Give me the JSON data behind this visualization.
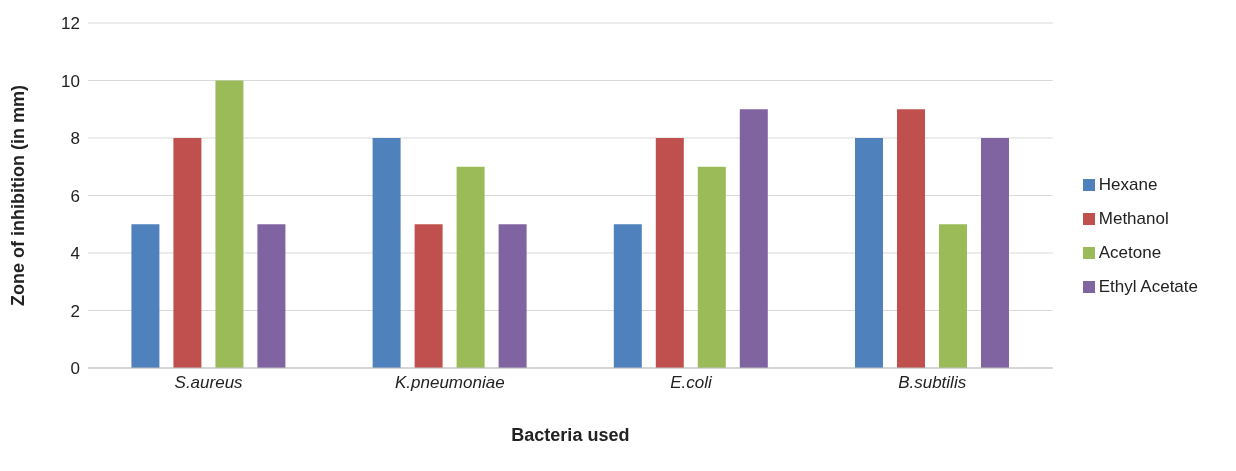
{
  "chart_data": {
    "type": "bar",
    "xlabel": "Bacteria used",
    "ylabel": "Zone of inhibition (in mm)",
    "categories": [
      "S.aureus",
      "K.pneumoniae",
      "E.coli",
      "B.subtilis"
    ],
    "series": [
      {
        "name": "Hexane",
        "color": "#4f81bd",
        "values": [
          5,
          8,
          5,
          8
        ]
      },
      {
        "name": "Methanol",
        "color": "#c0504d",
        "values": [
          8,
          5,
          8,
          9
        ]
      },
      {
        "name": "Acetone",
        "color": "#9bbb59",
        "values": [
          10,
          7,
          7,
          5
        ]
      },
      {
        "name": "Ethyl Acetate",
        "color": "#8064a2",
        "values": [
          5,
          5,
          9,
          8
        ]
      }
    ],
    "ylim": [
      0,
      12
    ],
    "yticks": [
      0,
      2,
      4,
      6,
      8,
      10,
      12
    ],
    "grid": "y",
    "legend": "right"
  }
}
